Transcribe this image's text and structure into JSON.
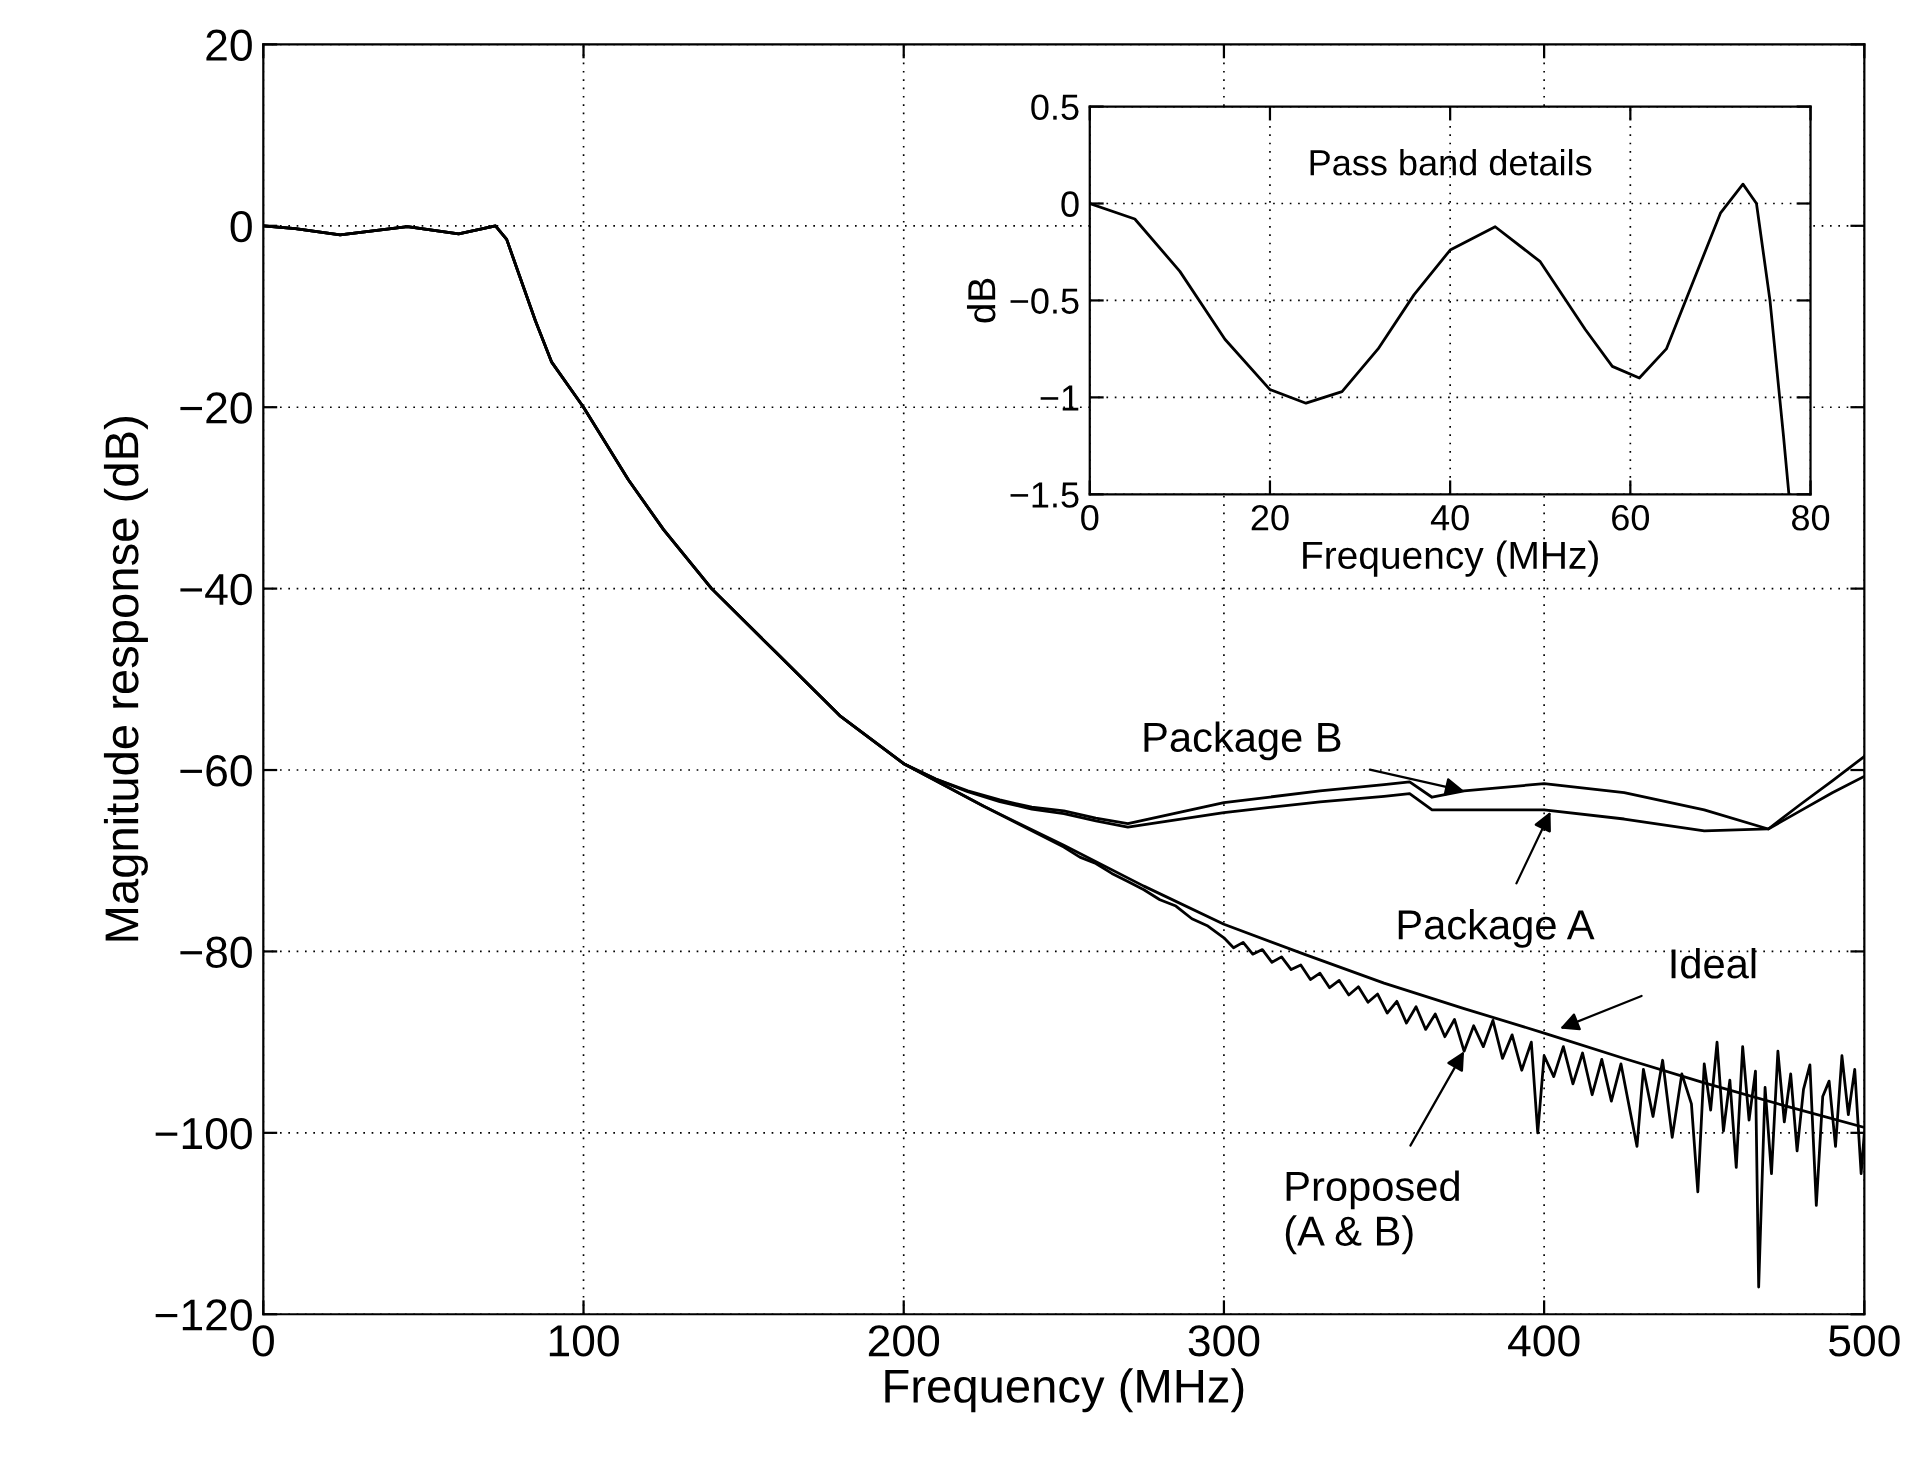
{
  "chart_data": [
    {
      "type": "line",
      "xlabel": "Frequency (MHz)",
      "ylabel": "Magnitude response (dB)",
      "xlim": [
        0,
        500
      ],
      "ylim": [
        -120,
        20
      ],
      "xticks": [
        0,
        100,
        200,
        300,
        400,
        500
      ],
      "yticks": [
        -120,
        -100,
        -80,
        -60,
        -40,
        -20,
        0,
        20
      ],
      "grid": true,
      "line_style": "solid",
      "series": [
        {
          "color": "#000000",
          "x": [
            0,
            10,
            24,
            45,
            61,
            72.5,
            76,
            80,
            85,
            90,
            100,
            114,
            125,
            140,
            160,
            180,
            200,
            225,
            250,
            275,
            300,
            325,
            350,
            375,
            400,
            425,
            450,
            475,
            500
          ],
          "values": [
            0,
            -0.3,
            -1,
            -0.1,
            -0.9,
            0,
            -1.5,
            -5.5,
            -10.5,
            -15,
            -20,
            -28,
            -33.5,
            -40,
            -47,
            -54,
            -59.3,
            -64,
            -68.3,
            -72.8,
            -77,
            -80.3,
            -83.5,
            -86.3,
            -89,
            -91.8,
            -94.5,
            -97,
            -99.4
          ]
        },
        {
          "color": "#000000",
          "x": [
            0,
            10,
            24,
            45,
            61,
            72.5,
            76,
            80,
            85,
            90,
            100,
            114,
            125,
            140,
            160,
            180,
            200,
            210,
            220,
            230,
            240,
            250,
            260,
            270,
            300,
            330,
            350,
            358,
            365,
            375,
            400,
            425,
            450,
            470,
            480,
            490,
            500
          ],
          "values": [
            0,
            -0.3,
            -1,
            -0.1,
            -0.9,
            0,
            -1.5,
            -5.5,
            -10.5,
            -15,
            -20,
            -28,
            -33.5,
            -40,
            -47,
            -54,
            -59.3,
            -61,
            -62.4,
            -63.5,
            -64.3,
            -64.8,
            -65.6,
            -66.3,
            -64.7,
            -63.5,
            -62.9,
            -62.6,
            -64.4,
            -64.4,
            -64.4,
            -65.4,
            -66.7,
            -66.5,
            -64.5,
            -62.5,
            -60.7
          ]
        },
        {
          "color": "#000000",
          "x": [
            0,
            10,
            24,
            45,
            61,
            72.5,
            76,
            80,
            85,
            90,
            100,
            114,
            125,
            140,
            160,
            180,
            200,
            210,
            220,
            230,
            240,
            250,
            260,
            270,
            300,
            330,
            350,
            358,
            365,
            375,
            400,
            425,
            450,
            470,
            480,
            490,
            500
          ],
          "values": [
            0,
            -0.3,
            -1,
            -0.1,
            -0.9,
            0,
            -1.5,
            -5.5,
            -10.5,
            -15,
            -20,
            -28,
            -33.5,
            -40,
            -47,
            -54,
            -59.3,
            -61,
            -62.3,
            -63.3,
            -64.1,
            -64.5,
            -65.3,
            -65.9,
            -63.6,
            -62.3,
            -61.6,
            -61.3,
            -63,
            -62.3,
            -61.5,
            -62.5,
            -64.4,
            -66.5,
            -63.8,
            -61.2,
            -58.5
          ]
        },
        {
          "color": "#000000",
          "x": [
            200,
            225,
            250,
            255,
            260,
            265,
            270,
            275,
            280,
            285,
            290,
            295,
            300,
            303,
            306,
            309,
            312,
            315,
            318,
            321,
            324,
            327,
            330,
            333,
            336,
            339,
            342,
            345,
            348,
            351,
            354,
            357,
            360,
            363,
            366,
            369,
            372,
            375,
            378,
            381,
            384,
            387,
            390,
            393,
            396,
            398,
            400,
            403,
            406,
            409,
            412,
            415,
            418,
            421,
            424,
            427,
            429,
            431,
            434,
            437,
            440,
            443,
            446,
            448,
            450,
            452,
            454,
            456,
            458,
            460,
            462,
            464,
            466,
            467,
            469,
            471,
            473,
            475,
            477,
            479,
            481,
            483,
            485,
            487,
            489,
            491,
            493,
            495,
            497,
            499,
            500
          ],
          "values": [
            -59.3,
            -64,
            -68.5,
            -69.6,
            -70.3,
            -71.4,
            -72.3,
            -73.2,
            -74.3,
            -75,
            -76.4,
            -77.2,
            -78.5,
            -79.6,
            -79,
            -80.3,
            -79.8,
            -81.2,
            -80.6,
            -82,
            -81.5,
            -83.1,
            -82.4,
            -84,
            -83.2,
            -84.8,
            -83.9,
            -85.6,
            -84.7,
            -86.8,
            -85.5,
            -87.9,
            -86.1,
            -88.6,
            -86.9,
            -89.4,
            -87.5,
            -91,
            -88.2,
            -90.5,
            -87.6,
            -91.8,
            -89.2,
            -93.1,
            -90,
            -100,
            -91.5,
            -93.8,
            -90.5,
            -94.6,
            -91.2,
            -95.8,
            -91.9,
            -96.5,
            -92.4,
            -97.9,
            -101.5,
            -93,
            -98.2,
            -92,
            -100.5,
            -93.5,
            -96.8,
            -106.5,
            -92.4,
            -97.5,
            -90,
            -99.8,
            -94.2,
            -103.8,
            -90.5,
            -98.6,
            -93.2,
            -117,
            -95,
            -104.5,
            -91,
            -98.8,
            -93.5,
            -102,
            -95.2,
            -92.5,
            -108,
            -96,
            -94.3,
            -101.5,
            -91.5,
            -98,
            -93,
            -104.5,
            -100
          ]
        }
      ],
      "annotations": [
        {
          "text": "Package B",
          "x": 375,
          "y": -62.3
        },
        {
          "text": "Package A",
          "x": 402,
          "y": -64.6
        },
        {
          "text": "Ideal",
          "x": 405,
          "y": -88.5
        },
        {
          "text": "Proposed\n(A & B)",
          "x": 375,
          "y": -91
        }
      ]
    },
    {
      "type": "line",
      "title": "Pass band details",
      "xlabel": "Frequency (MHz)",
      "ylabel": "dB",
      "xlim": [
        0,
        80
      ],
      "ylim": [
        -1.5,
        0.5
      ],
      "xticks": [
        0,
        20,
        40,
        60,
        80
      ],
      "yticks": [
        -1.5,
        -1,
        -0.5,
        0,
        0.5
      ],
      "grid": true,
      "line_style": "solid",
      "series": [
        {
          "color": "#000000",
          "x": [
            0,
            5,
            10,
            15,
            20,
            24,
            28,
            32,
            36,
            40,
            45,
            50,
            55,
            58,
            61,
            64,
            67,
            70,
            72.5,
            74,
            75.5,
            77,
            77.6
          ],
          "values": [
            0,
            -0.08,
            -0.35,
            -0.7,
            -0.96,
            -1.03,
            -0.97,
            -0.75,
            -0.47,
            -0.24,
            -0.12,
            -0.3,
            -0.65,
            -0.84,
            -0.9,
            -0.75,
            -0.4,
            -0.05,
            0.1,
            0,
            -0.5,
            -1.2,
            -1.5
          ]
        }
      ]
    }
  ]
}
